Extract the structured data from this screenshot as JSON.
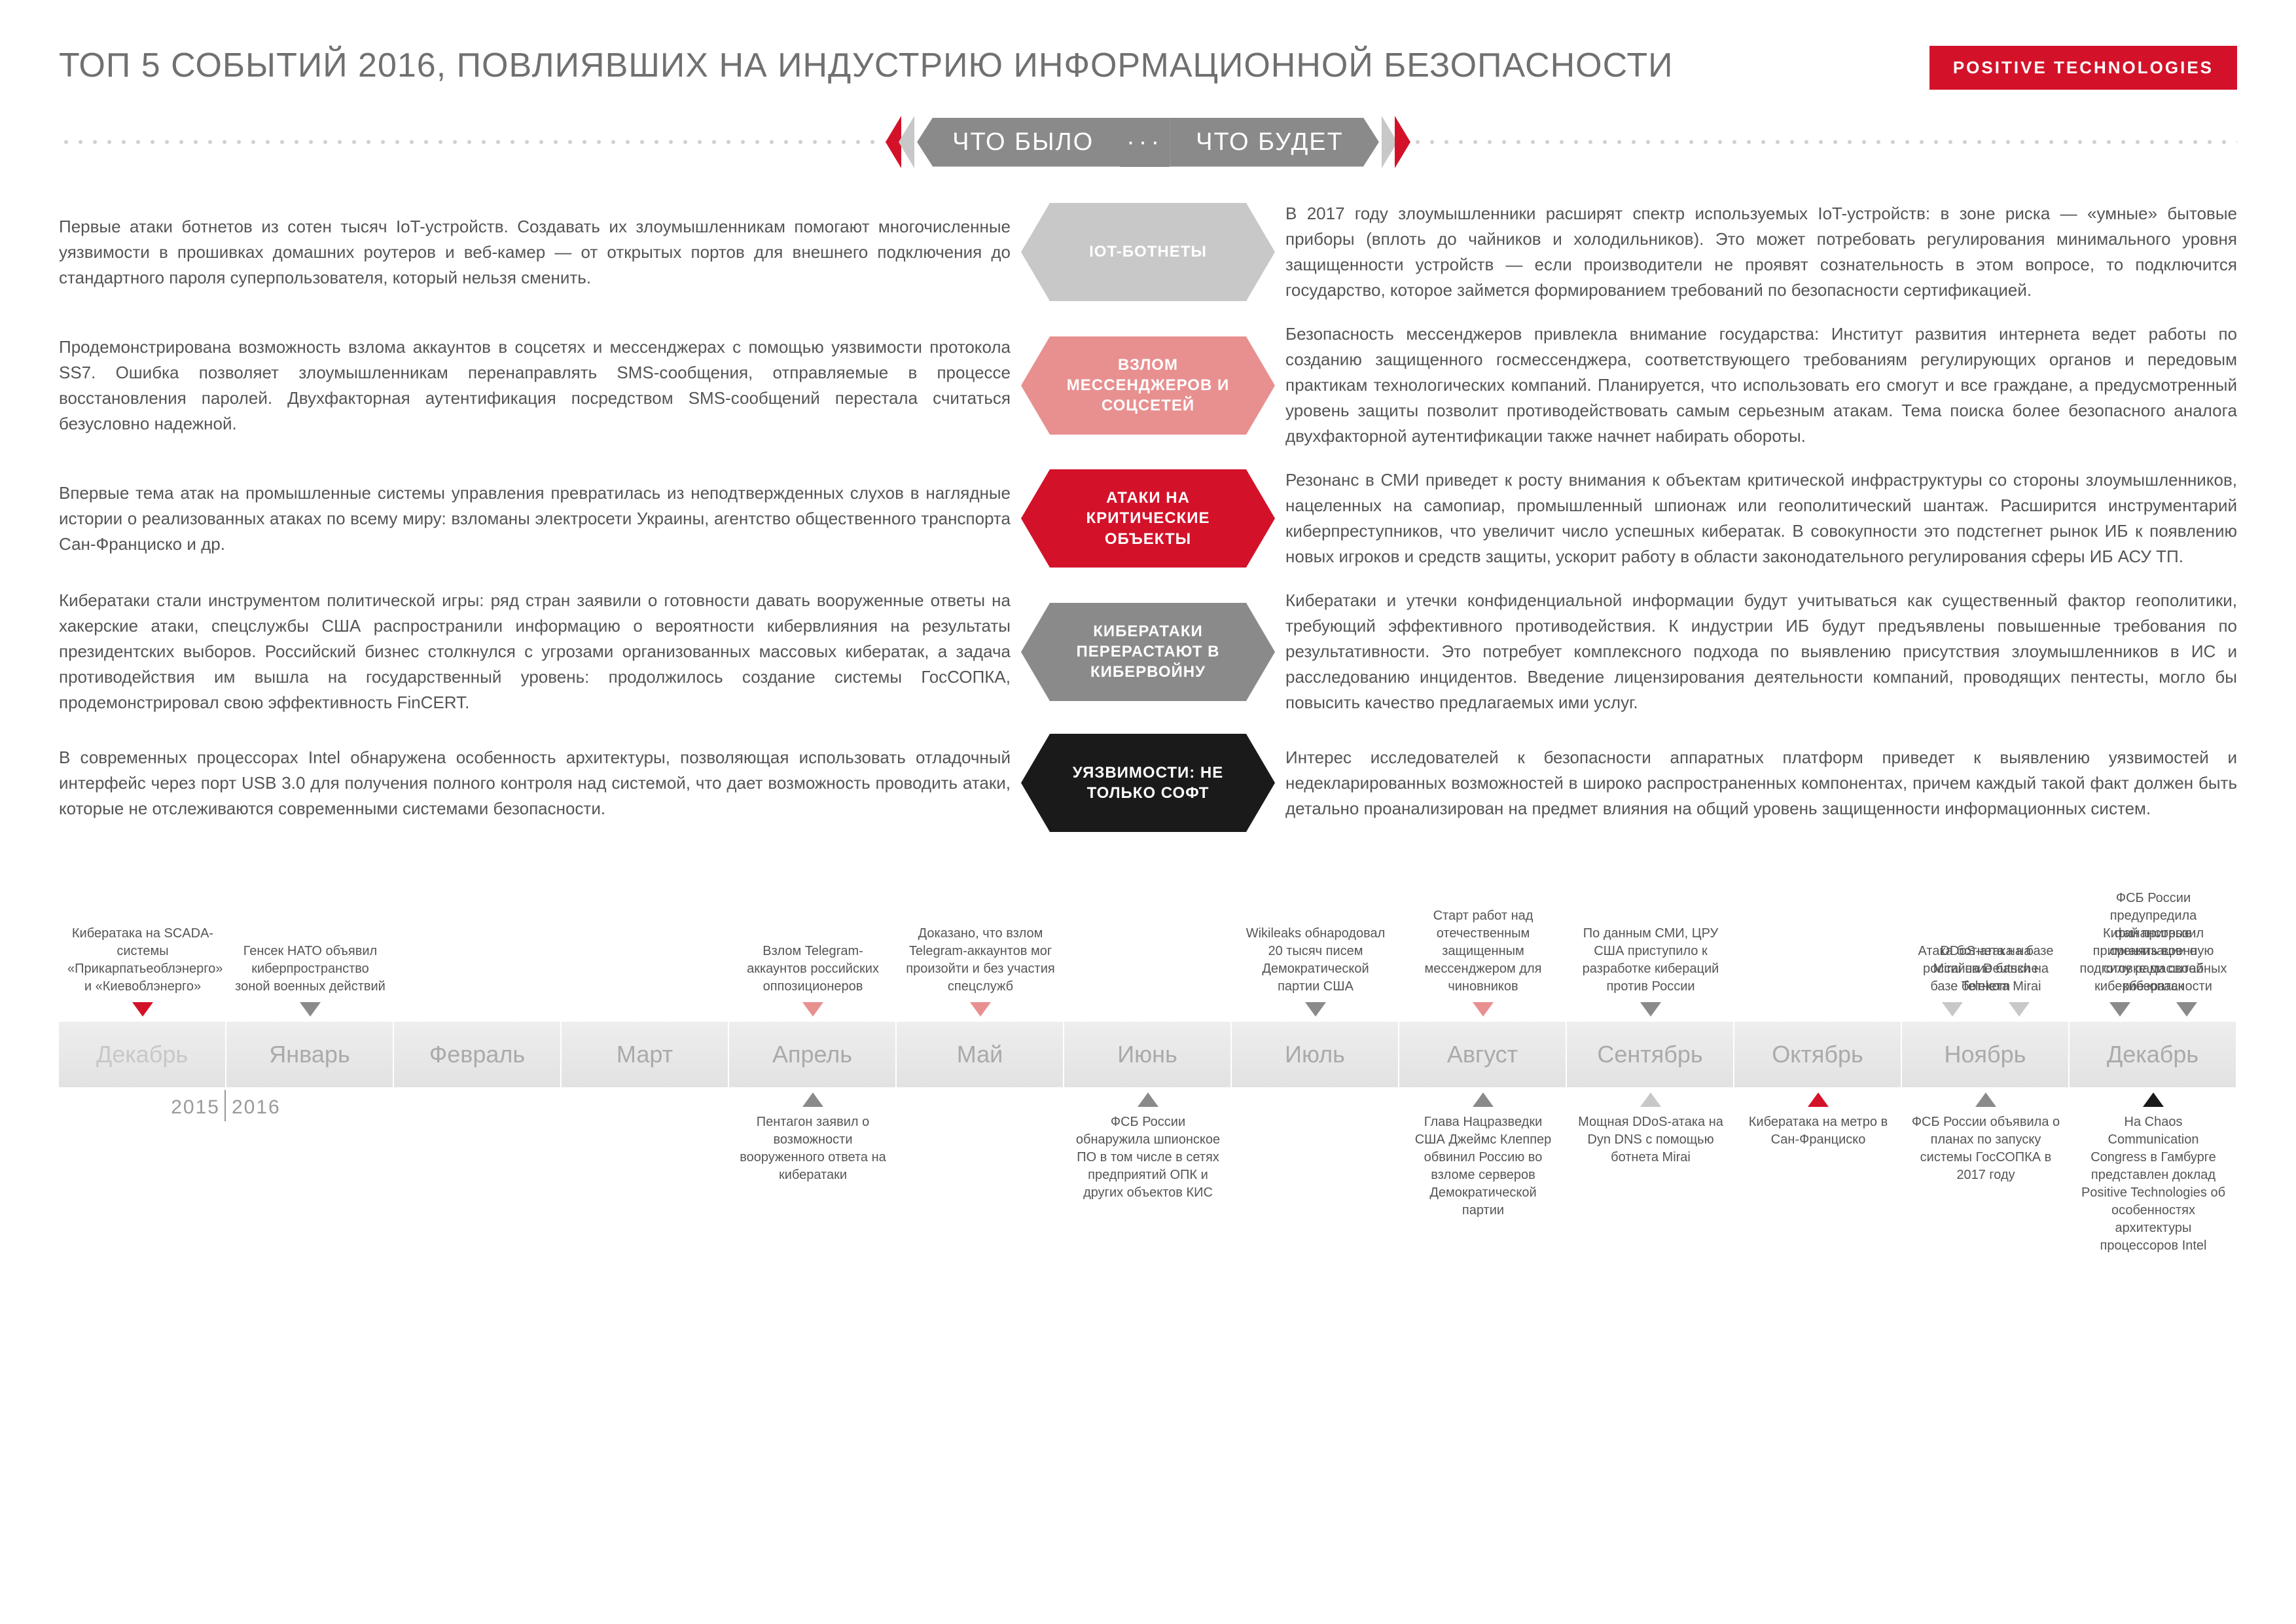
{
  "header": {
    "title": "ТОП 5 СОБЫТИЙ 2016, ПОВЛИЯВШИХ НА ИНДУСТРИЮ ИНФОРМАЦИОННОЙ БЕЗОПАСНОСТИ",
    "logo": "POSITIVE TECHNOLOGIES"
  },
  "divider": {
    "left": "ЧТО БЫЛО",
    "right": "ЧТО БУДЕТ",
    "dots": "···"
  },
  "colors": {
    "red": "#d3122a",
    "pink": "#e89090",
    "gray": "#8a8a8a",
    "lgray": "#c8c8c8",
    "black": "#1a1a1a",
    "bg_band": "#ebeaea",
    "text": "#555"
  },
  "events": [
    {
      "left": "Первые атаки ботнетов из сотен тысяч IoT-устройств. Создавать их злоумышленникам помогают многочисленные уязвимости в прошивках домашних роутеров и веб-камер — от открытых портов для внешнего подключения до стандартного пароля суперпользователя, который нельзя сменить.",
      "label": "IOT-БОТНЕТЫ",
      "color": "c0",
      "right": "В 2017 году злоумышленники расширят спектр используемых IoT-устройств: в зоне риска — «умные» бытовые приборы (вплоть до чайников и холодильников). Это может потребовать регулирования минимального уровня защищенности устройств — если производители не проявят сознательность в этом вопросе, то подключится государство, которое займется формированием требований по безопасности сертификацией."
    },
    {
      "left": "Продемонстрирована возможность взлома аккаунтов в соцсетях и мессенджерах с помощью уязвимости протокола SS7. Ошибка позволяет злоумышленникам перенаправлять SMS-сообщения, отправляемые в процессе восстановления паролей. Двухфакторная аутентификация посредством SMS-сообщений перестала считаться безусловно надежной.",
      "label": "ВЗЛОМ МЕССЕНДЖЕРОВ И СОЦСЕТЕЙ",
      "color": "c1",
      "right": "Безопасность мессенджеров привлекла внимание государства: Институт развития интернета ведет работы по созданию защищенного госмессенджера, соответствующего требованиям регулирующих органов и передовым практикам технологических компаний. Планируется, что использовать его смогут и все граждане, а предусмотренный уровень защиты позволит противодействовать самым серьезным атакам. Тема поиска более безопасного аналога двухфакторной аутентификации также начнет набирать обороты."
    },
    {
      "left": "Впервые тема атак на промышленные системы управления превратилась из неподтвержденных слухов в наглядные истории о реализованных атаках по всему миру: взломаны электросети Украины, агентство общественного транспорта Сан-Франциско и др.",
      "label": "АТАКИ НА КРИТИЧЕСКИЕ ОБЪЕКТЫ",
      "color": "c2",
      "right": "Резонанс в СМИ приведет к росту внимания к объектам критической инфраструктуры со стороны злоумышленников, нацеленных на самопиар, промышленный шпионаж или геополитический шантаж. Расширится инструментарий киберпреступников, что увеличит число успешных кибератак. В совокупности это подстегнет рынок ИБ к появлению новых игроков и средств защиты, ускорит работу в области законодательного регулирования сферы ИБ АСУ ТП."
    },
    {
      "left": "Кибератаки стали инструментом политической игры: ряд стран заявили о готовности давать вооруженные ответы на хакерские атаки, спецслужбы США распространили информацию о вероятности кибервлияния на результаты президентских выборов. Российский бизнес столкнулся с угрозами организованных массовых кибератак, а задача противодействия им вышла на государственный уровень: продолжилось создание системы ГосСОПКА, продемонстрировал свою эффективность FinCERT.",
      "label": "КИБЕРАТАКИ ПЕРЕРАСТАЮТ В КИБЕРВОЙНУ",
      "color": "c3",
      "right": "Кибератаки и утечки конфиденциальной информации будут учитываться как существенный фактор геополитики, требующий эффективного противодействия. К индустрии ИБ будут предъявлены повышенные требования по результативности. Это потребует комплексного подхода по выявлению присутствия злоумышленников в ИС и расследованию инцидентов. Введение лицензирования деятельности компаний, проводящих пентесты, могло бы повысить качество предлагаемых ими услуг."
    },
    {
      "left": "В современных процессорах Intel обнаружена особенность архитектуры, позволяющая использовать отладочный интерфейс через порт USB 3.0 для получения полного контроля над системой, что дает возможность проводить атаки, которые не отслеживаются современными системами безопасности.",
      "label": "УЯЗВИМОСТИ: НЕ ТОЛЬКО СОФТ",
      "color": "c4",
      "right": "Интерес исследователей к безопасности аппаратных платформ приведет к выявлению уязвимостей и недекларированных возможностей в широко распространенных компонентах, причем каждый такой факт должен быть детально проанализирован на предмет влияния на общий уровень защищенности информационных систем."
    }
  ],
  "timeline": {
    "months": [
      "Декабрь",
      "Январь",
      "Февраль",
      "Март",
      "Апрель",
      "Май",
      "Июнь",
      "Июль",
      "Август",
      "Сентябрь",
      "Октябрь",
      "Ноябрь",
      "Декабрь"
    ],
    "year_left": "2015",
    "year_right": "2016",
    "top": [
      [
        {
          "text": "Кибератака на SCADA-системы «Прикарпатьеоблэнерго» и «Киевоблэнерго»",
          "tri": "red"
        }
      ],
      [
        {
          "text": "Генсек НАТО объявил киберпространство зоной военных действий",
          "tri": "gray"
        }
      ],
      [],
      [],
      [
        {
          "text": "Взлом Telegram-аккаунтов российских оппозиционеров",
          "tri": "pink"
        }
      ],
      [
        {
          "text": "Доказано, что взлом Telegram-аккаунтов мог произойти и без участия спецслужб",
          "tri": "pink"
        }
      ],
      [],
      [
        {
          "text": "Wikileaks обнародовал 20 тысяч писем Демократической партии США",
          "tri": "gray"
        }
      ],
      [
        {
          "text": "Старт работ над отечественным защищенным мессенджером для чиновников",
          "tri": "pink"
        }
      ],
      [
        {
          "text": "По данным СМИ, ЦРУ США приступило к разработке кибераций против России",
          "tri": "gray"
        }
      ],
      [],
      [
        {
          "text": "Атака ботнета на базе Mirai на Deutsche Telekom",
          "tri": "lgray"
        },
        {
          "text": "DDoS-атака на российские банки на базе ботнета Mirai",
          "tri": "lgray"
        }
      ],
      [
        {
          "text": "Китай пригрозил применять военную силу ради своей кибербезопасности",
          "tri": "gray"
        },
        {
          "text": "ФСБ России предупредила финансовые организации о подготовке масштабных кибератак",
          "tri": "gray"
        }
      ]
    ],
    "bottom": [
      [],
      [],
      [],
      [],
      [
        {
          "text": "Пентагон заявил о возможности вооруженного ответа на кибератаки",
          "tri": "gray"
        }
      ],
      [],
      [
        {
          "text": "ФСБ России обнаружила шпионское ПО в том числе в сетях предприятий ОПК и других объектов КИС",
          "tri": "gray"
        }
      ],
      [],
      [
        {
          "text": "Глава Нацразведки США Джеймс Клеппер обвинил Россию во взломе серверов Демократической партии",
          "tri": "gray"
        }
      ],
      [
        {
          "text": "Мощная DDoS-атака на Dyn DNS с помощью ботнета Mirai",
          "tri": "lgray"
        }
      ],
      [
        {
          "text": "Кибератака на метро в Сан-Франциско",
          "tri": "red"
        }
      ],
      [
        {
          "text": "ФСБ России объявила о планах по запуску системы ГосСОПКА в 2017 году",
          "tri": "gray"
        }
      ],
      [
        {
          "text": "На Chaos Communication Congress в Гамбурге представлен доклад Positive Technologies об особенностях архитектуры процессоров Intel",
          "tri": "black"
        }
      ]
    ]
  }
}
